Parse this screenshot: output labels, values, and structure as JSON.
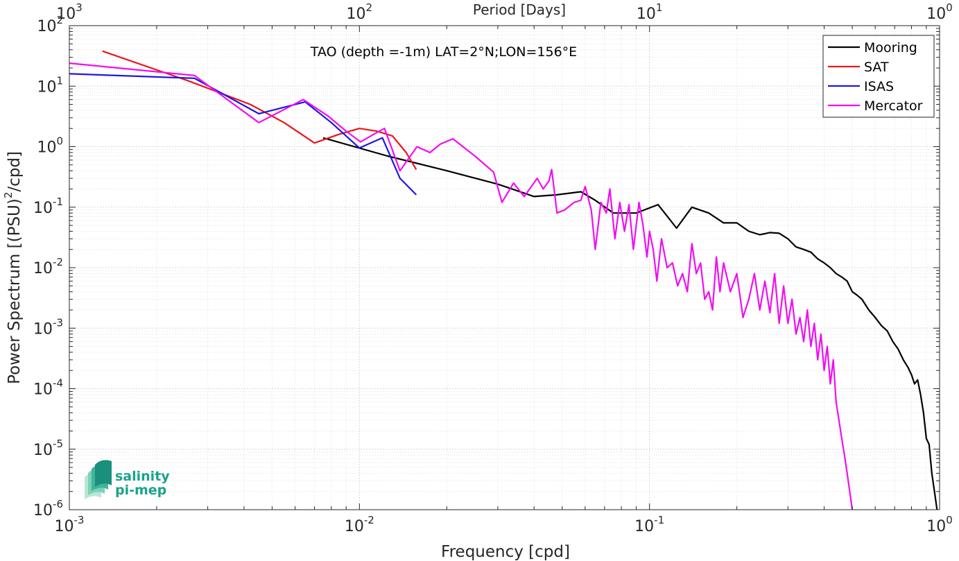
{
  "chart_data": {
    "type": "line",
    "xscale": "log",
    "yscale": "log",
    "xlabel": "Frequency [cpd]",
    "ylabel": "Power Spectrum [(PSU)",
    "ylabel_exp": "2",
    "ylabel_tail": "/cpd]",
    "top_xlabel": "Period [Days]",
    "annotation": "TAO (depth =-1m) LAT=2°N;LON=156°E",
    "xlim": [
      0.001,
      1
    ],
    "ylim": [
      1e-06,
      100
    ],
    "grid": true,
    "legend_position": "top-right",
    "x_ticks": [
      {
        "value": 0.001,
        "base": "10",
        "exp": "-3"
      },
      {
        "value": 0.01,
        "base": "10",
        "exp": "-2"
      },
      {
        "value": 0.1,
        "base": "10",
        "exp": "-1"
      },
      {
        "value": 1,
        "base": "10",
        "exp": "0"
      }
    ],
    "top_ticks": [
      {
        "value": 0.001,
        "base": "10",
        "exp": "3"
      },
      {
        "value": 0.01,
        "base": "10",
        "exp": "2"
      },
      {
        "value": 0.1,
        "base": "10",
        "exp": "1"
      },
      {
        "value": 1,
        "base": "10",
        "exp": "0"
      }
    ],
    "y_ticks": [
      {
        "value": 100,
        "base": "10",
        "exp": "2"
      },
      {
        "value": 10,
        "base": "10",
        "exp": "1"
      },
      {
        "value": 1,
        "base": "10",
        "exp": "0"
      },
      {
        "value": 0.1,
        "base": "10",
        "exp": "-1"
      },
      {
        "value": 0.01,
        "base": "10",
        "exp": "-2"
      },
      {
        "value": 0.001,
        "base": "10",
        "exp": "-3"
      },
      {
        "value": 0.0001,
        "base": "10",
        "exp": "-4"
      },
      {
        "value": 1e-05,
        "base": "10",
        "exp": "-5"
      },
      {
        "value": 1e-06,
        "base": "10",
        "exp": "-6"
      }
    ],
    "series": [
      {
        "name": "Mooring",
        "color": "#000000",
        "points": [
          [
            0.0075,
            1.4
          ],
          [
            0.0125,
            0.7
          ],
          [
            0.02,
            0.4
          ],
          [
            0.03,
            0.24
          ],
          [
            0.04,
            0.15
          ],
          [
            0.048,
            0.16
          ],
          [
            0.058,
            0.18
          ],
          [
            0.065,
            0.13
          ],
          [
            0.075,
            0.08
          ],
          [
            0.09,
            0.08
          ],
          [
            0.107,
            0.11
          ],
          [
            0.124,
            0.045
          ],
          [
            0.14,
            0.1
          ],
          [
            0.16,
            0.08
          ],
          [
            0.18,
            0.055
          ],
          [
            0.2,
            0.055
          ],
          [
            0.22,
            0.04
          ],
          [
            0.24,
            0.035
          ],
          [
            0.26,
            0.038
          ],
          [
            0.28,
            0.037
          ],
          [
            0.3,
            0.03
          ],
          [
            0.32,
            0.022
          ],
          [
            0.34,
            0.02
          ],
          [
            0.36,
            0.018
          ],
          [
            0.38,
            0.014
          ],
          [
            0.4,
            0.012
          ],
          [
            0.42,
            0.01
          ],
          [
            0.44,
            0.008
          ],
          [
            0.46,
            0.007
          ],
          [
            0.48,
            0.006
          ],
          [
            0.5,
            0.004
          ],
          [
            0.52,
            0.0035
          ],
          [
            0.54,
            0.003
          ],
          [
            0.57,
            0.002
          ],
          [
            0.6,
            0.0015
          ],
          [
            0.63,
            0.0011
          ],
          [
            0.66,
            0.0009
          ],
          [
            0.69,
            0.0006
          ],
          [
            0.72,
            0.00045
          ],
          [
            0.75,
            0.0003
          ],
          [
            0.78,
            0.00022
          ],
          [
            0.8,
            0.00017
          ],
          [
            0.82,
            0.00012
          ],
          [
            0.84,
            0.00014
          ],
          [
            0.86,
            8e-05
          ],
          [
            0.88,
            4e-05
          ],
          [
            0.9,
            1.5e-05
          ],
          [
            0.92,
            1.2e-05
          ],
          [
            0.94,
            4e-06
          ],
          [
            0.96,
            2e-06
          ],
          [
            0.98,
            1e-06
          ]
        ]
      },
      {
        "name": "SAT",
        "color": "#e8161b",
        "points": [
          [
            0.0013,
            38
          ],
          [
            0.0026,
            12
          ],
          [
            0.0042,
            5
          ],
          [
            0.0055,
            2.5
          ],
          [
            0.007,
            1.15
          ],
          [
            0.0085,
            1.6
          ],
          [
            0.01,
            2.0
          ],
          [
            0.0115,
            1.8
          ],
          [
            0.013,
            1.5
          ],
          [
            0.0145,
            0.8
          ],
          [
            0.0157,
            0.42
          ]
        ]
      },
      {
        "name": "ISAS",
        "color": "#1e17e0",
        "points": [
          [
            0.001,
            16
          ],
          [
            0.0027,
            13.5
          ],
          [
            0.0045,
            3.5
          ],
          [
            0.0065,
            5.5
          ],
          [
            0.008,
            2.5
          ],
          [
            0.01,
            0.95
          ],
          [
            0.012,
            1.4
          ],
          [
            0.0138,
            0.3
          ],
          [
            0.0157,
            0.16
          ]
        ]
      },
      {
        "name": "Mercator",
        "color": "#f20cf2",
        "points": [
          [
            0.001,
            24
          ],
          [
            0.0027,
            15
          ],
          [
            0.0045,
            2.5
          ],
          [
            0.0064,
            6.0
          ],
          [
            0.0078,
            3.2
          ],
          [
            0.009,
            1.8
          ],
          [
            0.0101,
            1.2
          ],
          [
            0.0112,
            1.6
          ],
          [
            0.0122,
            2.0
          ],
          [
            0.0138,
            0.4
          ],
          [
            0.0158,
            1.0
          ],
          [
            0.0175,
            0.8
          ],
          [
            0.019,
            1.1
          ],
          [
            0.021,
            1.35
          ],
          [
            0.025,
            0.7
          ],
          [
            0.029,
            0.38
          ],
          [
            0.031,
            0.12
          ],
          [
            0.034,
            0.25
          ],
          [
            0.037,
            0.15
          ],
          [
            0.041,
            0.3
          ],
          [
            0.043,
            0.2
          ],
          [
            0.045,
            0.27
          ],
          [
            0.046,
            0.42
          ],
          [
            0.048,
            0.08
          ],
          [
            0.051,
            0.09
          ],
          [
            0.055,
            0.12
          ],
          [
            0.058,
            0.13
          ],
          [
            0.06,
            0.22
          ],
          [
            0.063,
            0.09
          ],
          [
            0.065,
            0.02
          ],
          [
            0.068,
            0.12
          ],
          [
            0.071,
            0.08
          ],
          [
            0.073,
            0.2
          ],
          [
            0.076,
            0.03
          ],
          [
            0.079,
            0.12
          ],
          [
            0.082,
            0.04
          ],
          [
            0.085,
            0.11
          ],
          [
            0.088,
            0.02
          ],
          [
            0.092,
            0.12
          ],
          [
            0.095,
            0.05
          ],
          [
            0.098,
            0.015
          ],
          [
            0.1,
            0.04
          ],
          [
            0.103,
            0.02
          ],
          [
            0.106,
            0.006
          ],
          [
            0.11,
            0.03
          ],
          [
            0.115,
            0.01
          ],
          [
            0.12,
            0.012
          ],
          [
            0.125,
            0.005
          ],
          [
            0.13,
            0.008
          ],
          [
            0.135,
            0.004
          ],
          [
            0.14,
            0.025
          ],
          [
            0.145,
            0.008
          ],
          [
            0.15,
            0.012
          ],
          [
            0.155,
            0.003
          ],
          [
            0.16,
            0.004
          ],
          [
            0.165,
            0.002
          ],
          [
            0.17,
            0.015
          ],
          [
            0.175,
            0.004
          ],
          [
            0.18,
            0.012
          ],
          [
            0.19,
            0.004
          ],
          [
            0.2,
            0.008
          ],
          [
            0.21,
            0.0015
          ],
          [
            0.22,
            0.003
          ],
          [
            0.23,
            0.008
          ],
          [
            0.24,
            0.002
          ],
          [
            0.25,
            0.006
          ],
          [
            0.26,
            0.0018
          ],
          [
            0.27,
            0.008
          ],
          [
            0.28,
            0.0012
          ],
          [
            0.29,
            0.005
          ],
          [
            0.3,
            0.0012
          ],
          [
            0.31,
            0.003
          ],
          [
            0.32,
            0.0008
          ],
          [
            0.33,
            0.0015
          ],
          [
            0.34,
            0.0006
          ],
          [
            0.35,
            0.002
          ],
          [
            0.36,
            0.0005
          ],
          [
            0.37,
            0.0012
          ],
          [
            0.38,
            0.0003
          ],
          [
            0.39,
            0.0008
          ],
          [
            0.4,
            0.0002
          ],
          [
            0.41,
            0.0005
          ],
          [
            0.42,
            0.00012
          ],
          [
            0.43,
            0.0003
          ],
          [
            0.44,
            6e-05
          ],
          [
            0.45,
            3e-05
          ],
          [
            0.46,
            1.5e-05
          ],
          [
            0.47,
            8e-06
          ],
          [
            0.48,
            4e-06
          ],
          [
            0.49,
            2e-06
          ],
          [
            0.5,
            1e-06
          ]
        ]
      }
    ]
  },
  "logo": {
    "line1": "salinity",
    "line2": "pi-mep",
    "color": "#1aa38b"
  }
}
